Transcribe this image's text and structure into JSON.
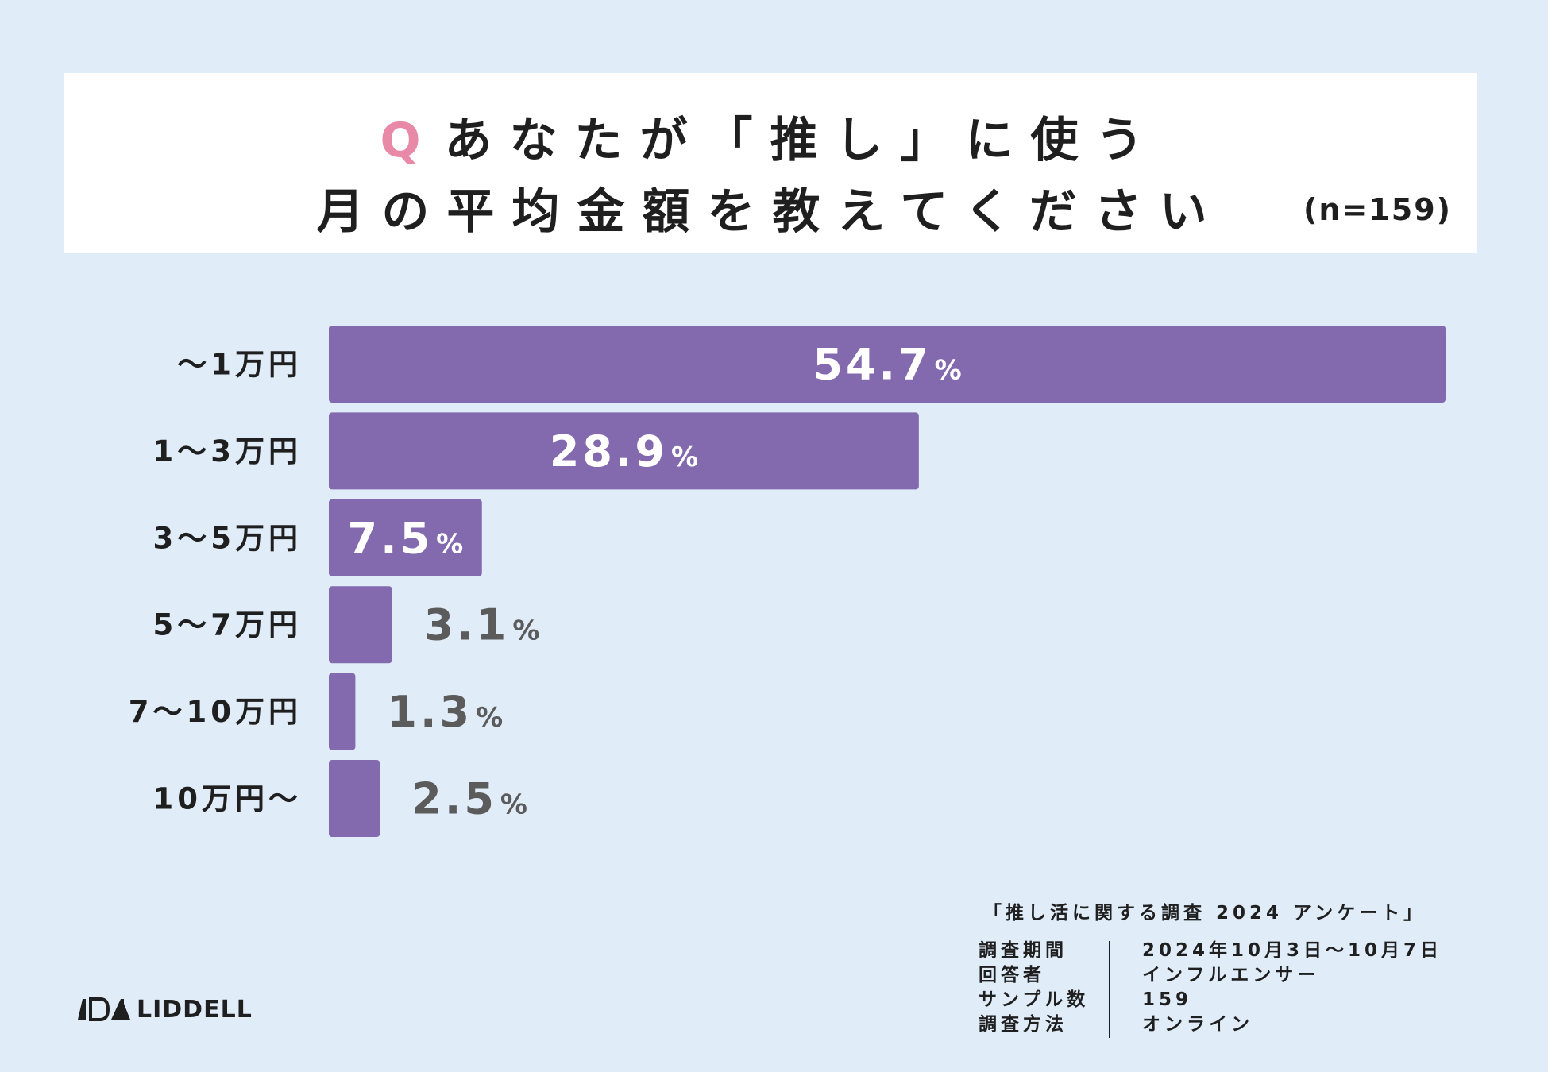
{
  "header": {
    "q_mark": "Q",
    "title_line1": "あなたが「推し」に使う",
    "title_line2": "月の平均金額を教えてください",
    "sample_size": "(n=159)"
  },
  "chart_data": {
    "type": "bar",
    "orientation": "horizontal",
    "title": "あなたが「推し」に使う月の平均金額を教えてください",
    "categories": [
      "〜1万円",
      "1〜3万円",
      "3〜5万円",
      "5〜7万円",
      "7〜10万円",
      "10万円〜"
    ],
    "values": [
      54.7,
      28.9,
      7.5,
      3.1,
      1.3,
      2.5
    ],
    "value_labels": [
      "54.7",
      "28.9",
      "7.5",
      "3.1",
      "1.3",
      "2.5"
    ],
    "unit": "%",
    "xlim": [
      0,
      54.7
    ],
    "bar_color": "#836aaf",
    "label_inside_color": "#ffffff",
    "label_outside_color": "#5b5b5b"
  },
  "survey": {
    "title": "「推し活に関する調査 2024 アンケート」",
    "rows": [
      {
        "key": "調査期間",
        "value": "2024年10月3日〜10月7日"
      },
      {
        "key": "回答者",
        "value": "インフルエンサー"
      },
      {
        "key": "サンプル数",
        "value": "159"
      },
      {
        "key": "調査方法",
        "value": "オンライン"
      }
    ]
  },
  "logo": {
    "text": "LIDDELL"
  }
}
